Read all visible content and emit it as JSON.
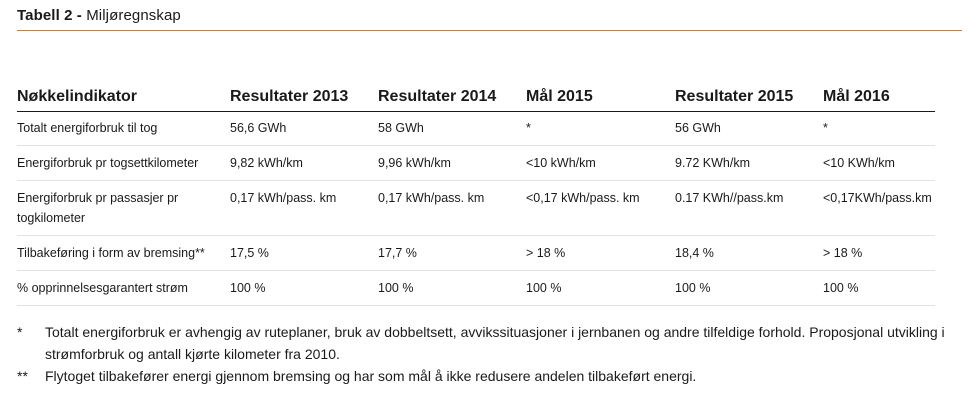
{
  "title": {
    "label": "Tabell 2 -",
    "subtitle": "Miljøregnskap"
  },
  "table": {
    "headers": [
      "Nøkkelindikator",
      "Resultater 2013",
      "Resultater 2014",
      "Mål 2015",
      "Resultater 2015",
      "Mål 2016"
    ],
    "rows": [
      [
        "Totalt energiforbruk til tog",
        "56,6 GWh",
        "58 GWh",
        "*",
        "56 GWh",
        "*"
      ],
      [
        "Energiforbruk pr togsettkilometer",
        "9,82 kWh/km",
        "9,96 kWh/km",
        "<10 kWh/km",
        "9.72 KWh/km",
        "<10 KWh/km"
      ],
      [
        "Energiforbruk pr passasjer pr togkilometer",
        "0,17 kWh/pass. km",
        "0,17 kWh/pass. km",
        "<0,17 kWh/pass. km",
        "0.17 KWh//pass.km",
        "<0,17KWh/pass.km"
      ],
      [
        "Tilbakeføring i form av bremsing**",
        "17,5 %",
        "17,7 %",
        "> 18 %",
        "18,4 %",
        "> 18 %"
      ],
      [
        "% opprinnelsesgarantert strøm",
        "100 %",
        "100 %",
        "100 %",
        "100 %",
        "100 %"
      ]
    ]
  },
  "notes": [
    {
      "mark": "*",
      "text": "Totalt energiforbruk er avhengig av ruteplaner, bruk av dobbeltsett, avvikssituasjoner i jernbanen og andre tilfeldige forhold. Proposjonal utvikling i strømforbruk og antall kjørte kilometer fra 2010."
    },
    {
      "mark": "**",
      "text": "Flytoget tilbakefører energi gjennom bremsing og har som mål å ikke redusere andelen tilbakeført energi."
    }
  ],
  "colors": {
    "accent": "#e8781e",
    "text": "#1a1a1a"
  }
}
